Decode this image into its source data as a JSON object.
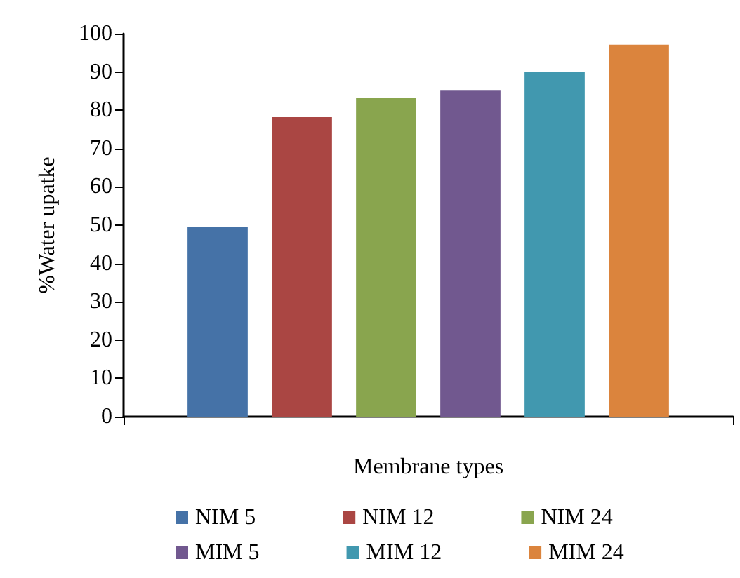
{
  "chart_data": {
    "type": "bar",
    "xlabel": "Membrane types",
    "ylabel": "%Water upatke",
    "categories": [
      null
    ],
    "series": [
      {
        "name": "NIM 5",
        "color": "#4572a7",
        "values": [
          49.5
        ]
      },
      {
        "name": "NIM 12",
        "color": "#aa4643",
        "values": [
          78.2
        ]
      },
      {
        "name": "NIM 24",
        "color": "#89a54e",
        "values": [
          83.3
        ]
      },
      {
        "name": "MIM 5",
        "color": "#71588f",
        "values": [
          85.1
        ]
      },
      {
        "name": "MIM 12",
        "color": "#4198af",
        "values": [
          90.1
        ]
      },
      {
        "name": "MIM 24",
        "color": "#db843d",
        "values": [
          97.1
        ]
      }
    ],
    "ylim": [
      0,
      100
    ],
    "yticks": [
      0,
      10,
      20,
      30,
      40,
      50,
      60,
      70,
      80,
      90,
      100
    ],
    "grid": false,
    "legend": "bottom"
  }
}
